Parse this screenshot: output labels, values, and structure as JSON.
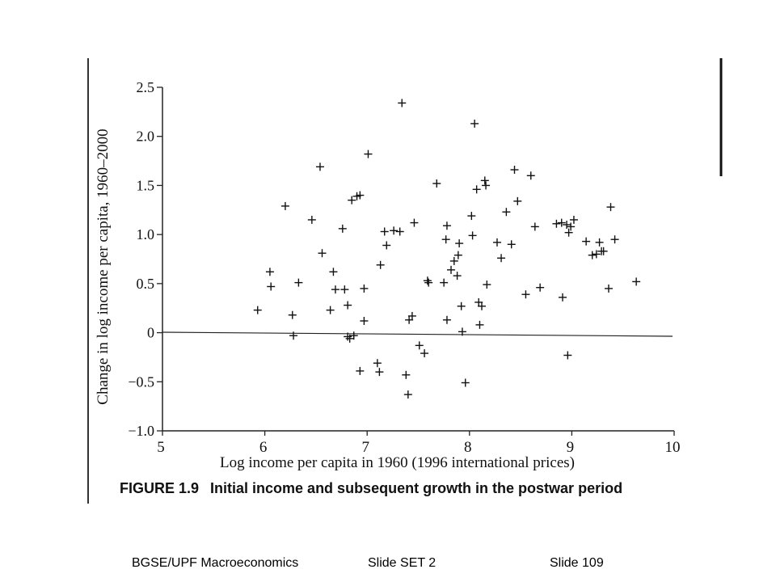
{
  "chart_data": {
    "type": "scatter",
    "title": "",
    "xlabel": "Log income per capita in 1960 (1996 international prices)",
    "ylabel": "Change in log income per capita, 1960–2000",
    "xlim": [
      5,
      10
    ],
    "ylim": [
      -1.0,
      2.5
    ],
    "x_ticks": [
      "5",
      "6",
      "7",
      "8",
      "9",
      "10"
    ],
    "y_ticks": [
      "2.5",
      "2.0",
      "1.5",
      "1.0",
      "0.5",
      "0",
      "−0.5",
      "−1.0"
    ],
    "marker": "plus",
    "reference_line": 0,
    "points": [
      [
        5.93,
        0.23
      ],
      [
        6.05,
        0.62
      ],
      [
        6.06,
        0.47
      ],
      [
        6.2,
        1.29
      ],
      [
        6.27,
        0.18
      ],
      [
        6.28,
        -0.03
      ],
      [
        6.33,
        0.51
      ],
      [
        6.46,
        1.15
      ],
      [
        6.54,
        1.69
      ],
      [
        6.56,
        0.81
      ],
      [
        6.64,
        0.23
      ],
      [
        6.67,
        0.62
      ],
      [
        6.69,
        0.44
      ],
      [
        6.76,
        1.06
      ],
      [
        6.78,
        0.44
      ],
      [
        6.81,
        0.28
      ],
      [
        6.81,
        -0.04
      ],
      [
        6.83,
        -0.06
      ],
      [
        6.85,
        1.35
      ],
      [
        6.87,
        -0.03
      ],
      [
        6.9,
        1.39
      ],
      [
        6.93,
        1.4
      ],
      [
        6.93,
        -0.39
      ],
      [
        6.97,
        0.45
      ],
      [
        6.97,
        0.12
      ],
      [
        7.01,
        1.82
      ],
      [
        7.1,
        -0.31
      ],
      [
        7.12,
        -0.4
      ],
      [
        7.13,
        0.69
      ],
      [
        7.17,
        1.03
      ],
      [
        7.19,
        0.89
      ],
      [
        7.26,
        1.04
      ],
      [
        7.32,
        1.03
      ],
      [
        7.34,
        2.34
      ],
      [
        7.38,
        -0.43
      ],
      [
        7.4,
        -0.63
      ],
      [
        7.41,
        0.13
      ],
      [
        7.44,
        0.17
      ],
      [
        7.46,
        1.12
      ],
      [
        7.51,
        -0.13
      ],
      [
        7.56,
        -0.21
      ],
      [
        7.59,
        0.53
      ],
      [
        7.6,
        0.51
      ],
      [
        7.68,
        1.52
      ],
      [
        7.75,
        0.51
      ],
      [
        7.77,
        0.95
      ],
      [
        7.78,
        1.09
      ],
      [
        7.78,
        0.13
      ],
      [
        7.82,
        0.64
      ],
      [
        7.85,
        0.73
      ],
      [
        7.88,
        0.58
      ],
      [
        7.89,
        0.79
      ],
      [
        7.9,
        0.91
      ],
      [
        7.92,
        0.27
      ],
      [
        7.93,
        0.01
      ],
      [
        7.96,
        -0.51
      ],
      [
        8.02,
        1.19
      ],
      [
        8.03,
        0.99
      ],
      [
        8.05,
        2.13
      ],
      [
        8.07,
        1.46
      ],
      [
        8.09,
        0.31
      ],
      [
        8.1,
        0.08
      ],
      [
        8.12,
        0.27
      ],
      [
        8.15,
        1.55
      ],
      [
        8.16,
        1.5
      ],
      [
        8.17,
        0.49
      ],
      [
        8.27,
        0.92
      ],
      [
        8.31,
        0.76
      ],
      [
        8.36,
        1.23
      ],
      [
        8.41,
        0.9
      ],
      [
        8.44,
        1.66
      ],
      [
        8.47,
        1.34
      ],
      [
        8.55,
        0.39
      ],
      [
        8.6,
        1.6
      ],
      [
        8.64,
        1.08
      ],
      [
        8.69,
        0.46
      ],
      [
        8.85,
        1.11
      ],
      [
        8.9,
        1.12
      ],
      [
        8.91,
        0.36
      ],
      [
        8.95,
        1.1
      ],
      [
        8.96,
        -0.23
      ],
      [
        8.97,
        1.02
      ],
      [
        8.99,
        1.08
      ],
      [
        9.02,
        1.15
      ],
      [
        9.14,
        0.93
      ],
      [
        9.2,
        0.79
      ],
      [
        9.24,
        0.8
      ],
      [
        9.27,
        0.92
      ],
      [
        9.29,
        0.83
      ],
      [
        9.31,
        0.83
      ],
      [
        9.36,
        0.45
      ],
      [
        9.38,
        1.28
      ],
      [
        9.42,
        0.95
      ],
      [
        9.63,
        0.52
      ]
    ]
  },
  "caption": {
    "figure_number": "FIGURE 1.9",
    "text": "Initial income and subsequent growth in the postwar period"
  },
  "footer": {
    "course": "BGSE/UPF Macroeconomics",
    "slide_set": "Slide SET 2",
    "slide_number": "Slide 109"
  }
}
